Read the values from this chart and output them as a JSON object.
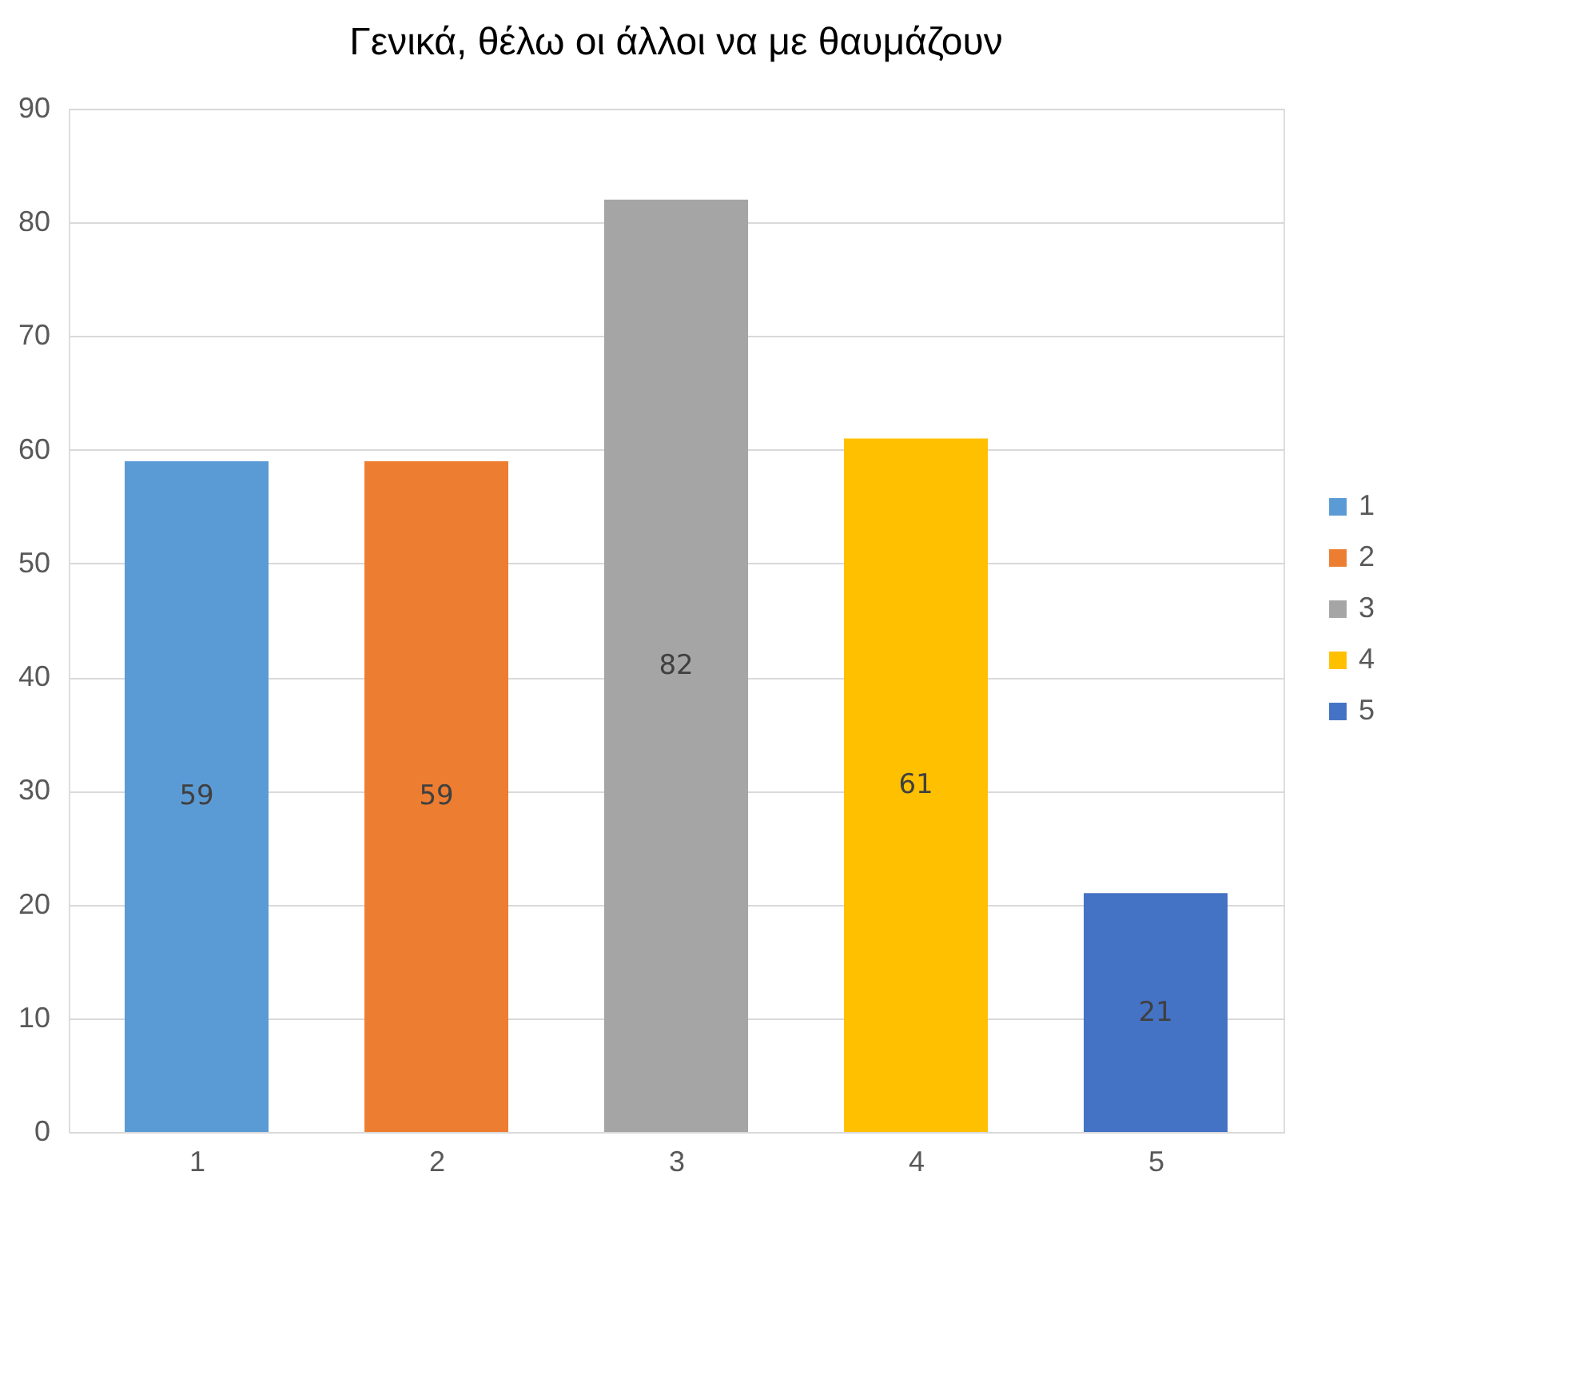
{
  "chart_data": {
    "type": "bar",
    "title": "Γενικά, θέλω οι άλλοι να με θαυμάζουν",
    "categories": [
      "1",
      "2",
      "3",
      "4",
      "5"
    ],
    "series": [
      {
        "name": "1",
        "color": "#5b9bd5",
        "values": [
          59,
          null,
          null,
          null,
          null
        ]
      },
      {
        "name": "2",
        "color": "#ed7d31",
        "values": [
          null,
          59,
          null,
          null,
          null
        ]
      },
      {
        "name": "3",
        "color": "#a5a5a5",
        "values": [
          null,
          null,
          82,
          null,
          null
        ]
      },
      {
        "name": "4",
        "color": "#ffc000",
        "values": [
          null,
          null,
          null,
          61,
          null
        ]
      },
      {
        "name": "5",
        "color": "#4472c4",
        "values": [
          null,
          null,
          null,
          null,
          21
        ]
      }
    ],
    "ylim": [
      0,
      90
    ],
    "yticks": [
      0,
      10,
      20,
      30,
      40,
      50,
      60,
      70,
      80,
      90
    ],
    "grid": "y",
    "legend": "right",
    "data_labels": true
  }
}
